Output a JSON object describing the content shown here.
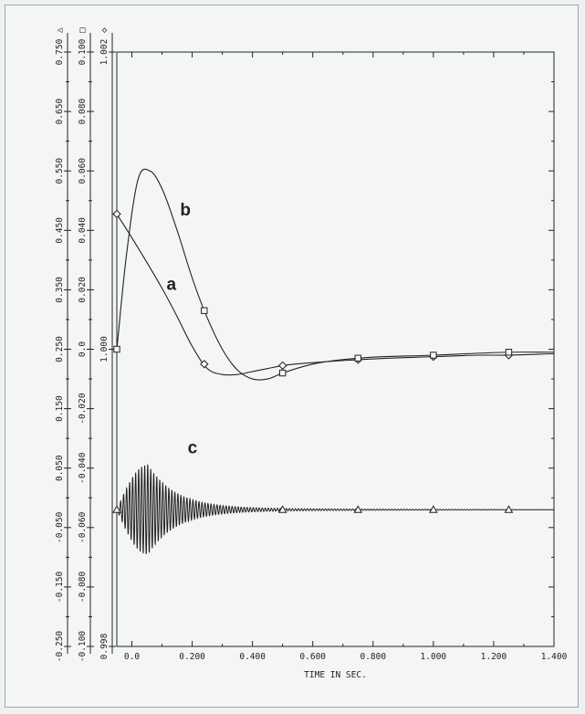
{
  "chart_data": {
    "type": "line",
    "title": "",
    "xlabel": "TIME IN SEC.",
    "xlim": [
      -0.05,
      1.4
    ],
    "x_ticks": [
      "0.0",
      "0.200",
      "0.400",
      "0.600",
      "0.800",
      "1.000",
      "1.200",
      "1.400"
    ],
    "x_tick_values": [
      0,
      0.2,
      0.4,
      0.6,
      0.8,
      1.0,
      1.2,
      1.4
    ],
    "y_axes": [
      {
        "marker": "triangle",
        "symbol": "△",
        "ylim": [
          -0.25,
          0.75
        ],
        "tick_labels": [
          "0.750",
          "0.650",
          "0.550",
          "0.450",
          "0.350",
          "0.250",
          "0.150",
          "0.050",
          "-0.050",
          "-0.150",
          "-0.250"
        ]
      },
      {
        "marker": "square",
        "symbol": "□",
        "ylim": [
          -0.1,
          0.1
        ],
        "tick_labels": [
          "0.100",
          "0.080",
          "0.060",
          "0.040",
          "0.020",
          "0.0",
          "-0.020",
          "-0.040",
          "-0.060",
          "-0.080",
          "-0.100"
        ]
      },
      {
        "marker": "diamond",
        "symbol": "◇",
        "ylim": [
          0.998,
          1.002
        ],
        "tick_labels": [
          "1.002",
          "1.000",
          "0.998"
        ]
      }
    ],
    "series": [
      {
        "label": "a",
        "marker": "diamond",
        "x": [
          -0.05,
          0.0,
          0.1,
          0.15,
          0.2,
          0.25,
          0.3,
          0.35,
          0.4,
          0.45,
          0.5,
          0.6,
          0.75,
          0.85,
          1.0,
          1.15,
          1.25,
          1.4
        ],
        "y": [
          1.00091,
          1.00075,
          1.00041,
          1.00022,
          1.00002,
          0.99987,
          0.99983,
          0.99983,
          0.99985,
          0.99987,
          0.99989,
          0.99991,
          0.99993,
          0.99994,
          0.99995,
          0.99996,
          0.99996,
          0.99997
        ],
        "marker_x": [
          -0.05,
          0.24,
          0.5,
          0.75,
          1.0,
          1.25
        ]
      },
      {
        "label": "b",
        "marker": "square",
        "x": [
          -0.05,
          -0.02,
          0.02,
          0.06,
          0.1,
          0.15,
          0.2,
          0.24,
          0.3,
          0.35,
          0.4,
          0.45,
          0.5,
          0.6,
          0.75,
          1.0,
          1.25,
          1.4
        ],
        "y": [
          0.0,
          0.03,
          0.057,
          0.06,
          0.054,
          0.04,
          0.024,
          0.013,
          0.0,
          -0.007,
          -0.01,
          -0.01,
          -0.008,
          -0.005,
          -0.003,
          -0.002,
          -0.001,
          -0.001
        ],
        "marker_x": [
          -0.05,
          0.24,
          0.5,
          0.75,
          1.0,
          1.25
        ]
      },
      {
        "label": "c",
        "marker": "triangle",
        "type": "damped oscillation",
        "baseline": -0.02,
        "peak_amplitude": 0.075,
        "peak_time": 0.05,
        "marker_x": [
          -0.05,
          0.5,
          0.75,
          1.0,
          1.25
        ]
      }
    ],
    "curve_labels": [
      "a",
      "b",
      "c"
    ],
    "grid": false
  }
}
